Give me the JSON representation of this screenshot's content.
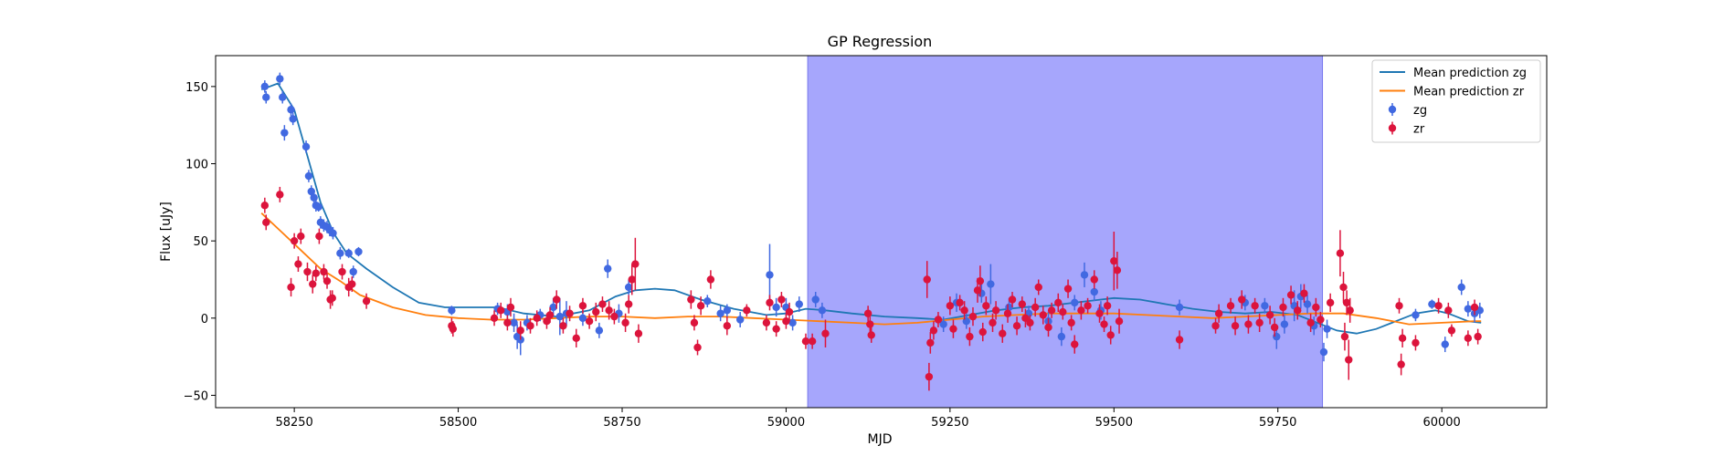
{
  "chart_data": {
    "type": "scatter",
    "title": "GP Regression",
    "xlabel": "MJD",
    "ylabel": "Flux [uJy]",
    "xlim": [
      58130,
      60160
    ],
    "ylim": [
      -58,
      170
    ],
    "xticks": [
      58250,
      58500,
      58750,
      59000,
      59250,
      59500,
      59750,
      60000
    ],
    "yticks": [
      -50,
      0,
      50,
      100,
      150
    ],
    "legend_position": "top-right",
    "shaded_region": {
      "x": [
        59033,
        59818
      ],
      "color": "#a6a6fc"
    },
    "colors": {
      "mean_zg": "#1f77b4",
      "mean_zr": "#ff7f0e",
      "zg": "#4169e1",
      "zr": "#dc143c"
    },
    "legend": [
      {
        "label": "Mean prediction zg",
        "kind": "line",
        "color": "#1f77b4"
      },
      {
        "label": "Mean prediction zr",
        "kind": "line",
        "color": "#ff7f0e"
      },
      {
        "label": "zg",
        "kind": "errorbar",
        "color": "#4169e1"
      },
      {
        "label": "zr",
        "kind": "errorbar",
        "color": "#dc143c"
      }
    ],
    "mean_prediction_zg": [
      [
        58200,
        148
      ],
      [
        58225,
        152
      ],
      [
        58250,
        135
      ],
      [
        58270,
        105
      ],
      [
        58290,
        75
      ],
      [
        58310,
        55
      ],
      [
        58330,
        42
      ],
      [
        58360,
        32
      ],
      [
        58400,
        20
      ],
      [
        58440,
        10
      ],
      [
        58480,
        7
      ],
      [
        58520,
        7
      ],
      [
        58560,
        7
      ],
      [
        58600,
        3
      ],
      [
        58650,
        1
      ],
      [
        58700,
        5
      ],
      [
        58740,
        14
      ],
      [
        58770,
        18
      ],
      [
        58800,
        19
      ],
      [
        58830,
        18
      ],
      [
        58870,
        12
      ],
      [
        58920,
        6
      ],
      [
        58970,
        2
      ],
      [
        59000,
        3
      ],
      [
        59030,
        6
      ],
      [
        59060,
        5
      ],
      [
        59100,
        3
      ],
      [
        59150,
        1
      ],
      [
        59200,
        0
      ],
      [
        59240,
        -1
      ],
      [
        59280,
        2
      ],
      [
        59320,
        5
      ],
      [
        59360,
        7
      ],
      [
        59400,
        8
      ],
      [
        59440,
        10
      ],
      [
        59480,
        12
      ],
      [
        59500,
        13
      ],
      [
        59540,
        12
      ],
      [
        59580,
        9
      ],
      [
        59620,
        6
      ],
      [
        59660,
        4
      ],
      [
        59700,
        3
      ],
      [
        59740,
        4
      ],
      [
        59780,
        2
      ],
      [
        59810,
        -3
      ],
      [
        59840,
        -8
      ],
      [
        59870,
        -10
      ],
      [
        59900,
        -7
      ],
      [
        59930,
        -2
      ],
      [
        59960,
        3
      ],
      [
        59990,
        5
      ],
      [
        60010,
        3
      ],
      [
        60040,
        -2
      ],
      [
        60060,
        -3
      ]
    ],
    "mean_prediction_zr": [
      [
        58200,
        68
      ],
      [
        58230,
        56
      ],
      [
        58260,
        44
      ],
      [
        58290,
        32
      ],
      [
        58320,
        24
      ],
      [
        58350,
        15
      ],
      [
        58400,
        7
      ],
      [
        58450,
        2
      ],
      [
        58500,
        0
      ],
      [
        58550,
        -1
      ],
      [
        58600,
        -1
      ],
      [
        58650,
        0
      ],
      [
        58700,
        1
      ],
      [
        58750,
        1
      ],
      [
        58800,
        0
      ],
      [
        58850,
        1
      ],
      [
        58900,
        1
      ],
      [
        58950,
        0
      ],
      [
        59000,
        -1
      ],
      [
        59050,
        -2
      ],
      [
        59100,
        -3
      ],
      [
        59150,
        -4
      ],
      [
        59200,
        -3
      ],
      [
        59250,
        -1
      ],
      [
        59300,
        1
      ],
      [
        59350,
        2
      ],
      [
        59400,
        3
      ],
      [
        59450,
        3
      ],
      [
        59500,
        3
      ],
      [
        59550,
        2
      ],
      [
        59600,
        1
      ],
      [
        59650,
        0
      ],
      [
        59700,
        1
      ],
      [
        59750,
        2
      ],
      [
        59800,
        3
      ],
      [
        59850,
        3
      ],
      [
        59900,
        0
      ],
      [
        59950,
        -4
      ],
      [
        60000,
        -3
      ],
      [
        60050,
        -2
      ],
      [
        60060,
        -2
      ]
    ],
    "zg": [
      [
        58205,
        150,
        4
      ],
      [
        58207,
        143,
        4
      ],
      [
        58228,
        155,
        4
      ],
      [
        58232,
        143,
        4
      ],
      [
        58235,
        120,
        5
      ],
      [
        58245,
        135,
        4
      ],
      [
        58248,
        129,
        4
      ],
      [
        58268,
        111,
        4
      ],
      [
        58272,
        92,
        4
      ],
      [
        58276,
        82,
        4
      ],
      [
        58280,
        78,
        4
      ],
      [
        58283,
        73,
        4
      ],
      [
        58287,
        72,
        3
      ],
      [
        58290,
        62,
        4
      ],
      [
        58295,
        60,
        4
      ],
      [
        58300,
        59,
        4
      ],
      [
        58304,
        57,
        4
      ],
      [
        58309,
        55,
        4
      ],
      [
        58320,
        42,
        4
      ],
      [
        58333,
        42,
        3
      ],
      [
        58340,
        30,
        4
      ],
      [
        58348,
        43,
        3
      ],
      [
        58490,
        5,
        3
      ],
      [
        58560,
        6,
        4
      ],
      [
        58575,
        4,
        5
      ],
      [
        58585,
        -3,
        6
      ],
      [
        58590,
        -12,
        8
      ],
      [
        58595,
        -14,
        10
      ],
      [
        58605,
        -3,
        5
      ],
      [
        58625,
        2,
        4
      ],
      [
        58645,
        7,
        6
      ],
      [
        58655,
        1,
        12
      ],
      [
        58665,
        3,
        8
      ],
      [
        58690,
        0,
        5
      ],
      [
        58715,
        -8,
        5
      ],
      [
        58728,
        32,
        6
      ],
      [
        58745,
        3,
        6
      ],
      [
        58760,
        20,
        5
      ],
      [
        58880,
        11,
        4
      ],
      [
        58900,
        3,
        5
      ],
      [
        58910,
        5,
        4
      ],
      [
        58930,
        -1,
        5
      ],
      [
        58975,
        28,
        20
      ],
      [
        58985,
        7,
        6
      ],
      [
        59000,
        7,
        6
      ],
      [
        59010,
        -3,
        5
      ],
      [
        59020,
        9,
        5
      ],
      [
        59045,
        12,
        5
      ],
      [
        59055,
        5,
        5
      ],
      [
        59240,
        -4,
        5
      ],
      [
        59260,
        10,
        6
      ],
      [
        59275,
        -2,
        5
      ],
      [
        59298,
        16,
        6
      ],
      [
        59312,
        22,
        13
      ],
      [
        59340,
        7,
        6
      ],
      [
        59370,
        3,
        5
      ],
      [
        59400,
        -2,
        6
      ],
      [
        59420,
        -12,
        6
      ],
      [
        59440,
        10,
        5
      ],
      [
        59455,
        28,
        8
      ],
      [
        59470,
        17,
        6
      ],
      [
        59480,
        5,
        6
      ],
      [
        59600,
        7,
        5
      ],
      [
        59700,
        10,
        5
      ],
      [
        59730,
        8,
        5
      ],
      [
        59748,
        -12,
        8
      ],
      [
        59760,
        -4,
        6
      ],
      [
        59775,
        8,
        10
      ],
      [
        59785,
        14,
        8
      ],
      [
        59795,
        9,
        6
      ],
      [
        59805,
        -5,
        6
      ],
      [
        59820,
        -22,
        6
      ],
      [
        59825,
        -7,
        6
      ],
      [
        59960,
        2,
        4
      ],
      [
        59985,
        9,
        3
      ],
      [
        60005,
        -17,
        5
      ],
      [
        60030,
        20,
        5
      ],
      [
        60040,
        6,
        5
      ],
      [
        60050,
        3,
        6
      ],
      [
        60058,
        5,
        5
      ]
    ],
    "zr": [
      [
        58205,
        73,
        5
      ],
      [
        58207,
        62,
        5
      ],
      [
        58228,
        80,
        5
      ],
      [
        58245,
        20,
        6
      ],
      [
        58250,
        50,
        5
      ],
      [
        58256,
        35,
        5
      ],
      [
        58260,
        53,
        5
      ],
      [
        58270,
        30,
        6
      ],
      [
        58278,
        22,
        6
      ],
      [
        58283,
        29,
        5
      ],
      [
        58288,
        53,
        5
      ],
      [
        58295,
        30,
        5
      ],
      [
        58300,
        24,
        5
      ],
      [
        58305,
        12,
        6
      ],
      [
        58308,
        13,
        5
      ],
      [
        58323,
        30,
        5
      ],
      [
        58333,
        20,
        6
      ],
      [
        58338,
        22,
        5
      ],
      [
        58360,
        11,
        5
      ],
      [
        58490,
        -5,
        5
      ],
      [
        58492,
        -7,
        5
      ],
      [
        58555,
        0,
        5
      ],
      [
        58565,
        5,
        5
      ],
      [
        58575,
        -3,
        5
      ],
      [
        58580,
        7,
        6
      ],
      [
        58595,
        -8,
        6
      ],
      [
        58610,
        -5,
        5
      ],
      [
        58620,
        0,
        5
      ],
      [
        58635,
        -2,
        5
      ],
      [
        58640,
        2,
        5
      ],
      [
        58650,
        12,
        6
      ],
      [
        58660,
        -5,
        5
      ],
      [
        58670,
        3,
        5
      ],
      [
        58680,
        -13,
        6
      ],
      [
        58690,
        8,
        5
      ],
      [
        58700,
        -2,
        5
      ],
      [
        58710,
        4,
        6
      ],
      [
        58720,
        9,
        5
      ],
      [
        58730,
        5,
        6
      ],
      [
        58738,
        1,
        5
      ],
      [
        58755,
        -3,
        6
      ],
      [
        58760,
        9,
        6
      ],
      [
        58765,
        25,
        10
      ],
      [
        58770,
        35,
        17
      ],
      [
        58775,
        -10,
        6
      ],
      [
        58855,
        12,
        6
      ],
      [
        58860,
        -3,
        5
      ],
      [
        58865,
        -19,
        5
      ],
      [
        58870,
        8,
        6
      ],
      [
        58885,
        25,
        6
      ],
      [
        58910,
        -5,
        6
      ],
      [
        58940,
        5,
        4
      ],
      [
        58970,
        -3,
        5
      ],
      [
        58975,
        10,
        5
      ],
      [
        58985,
        -7,
        5
      ],
      [
        58993,
        12,
        5
      ],
      [
        59000,
        -2,
        5
      ],
      [
        59005,
        4,
        6
      ],
      [
        59030,
        -15,
        5
      ],
      [
        59040,
        -15,
        5
      ],
      [
        59060,
        -10,
        9
      ],
      [
        59125,
        3,
        5
      ],
      [
        59128,
        -4,
        5
      ],
      [
        59130,
        -11,
        5
      ],
      [
        59215,
        25,
        12
      ],
      [
        59218,
        -38,
        9
      ],
      [
        59220,
        -16,
        7
      ],
      [
        59225,
        -8,
        6
      ],
      [
        59232,
        -1,
        5
      ],
      [
        59250,
        8,
        6
      ],
      [
        59255,
        -7,
        6
      ],
      [
        59265,
        10,
        5
      ],
      [
        59272,
        5,
        6
      ],
      [
        59280,
        -12,
        6
      ],
      [
        59285,
        1,
        6
      ],
      [
        59292,
        18,
        8
      ],
      [
        59296,
        24,
        10
      ],
      [
        59300,
        -9,
        6
      ],
      [
        59305,
        8,
        6
      ],
      [
        59315,
        -3,
        6
      ],
      [
        59320,
        5,
        6
      ],
      [
        59330,
        -10,
        6
      ],
      [
        59338,
        3,
        6
      ],
      [
        59345,
        12,
        5
      ],
      [
        59352,
        -5,
        6
      ],
      [
        59360,
        9,
        5
      ],
      [
        59365,
        0,
        6
      ],
      [
        59372,
        -3,
        5
      ],
      [
        59380,
        7,
        6
      ],
      [
        59385,
        20,
        5
      ],
      [
        59392,
        2,
        6
      ],
      [
        59400,
        -6,
        6
      ],
      [
        59405,
        5,
        5
      ],
      [
        59415,
        10,
        6
      ],
      [
        59422,
        4,
        5
      ],
      [
        59430,
        19,
        6
      ],
      [
        59435,
        -3,
        5
      ],
      [
        59440,
        -17,
        6
      ],
      [
        59450,
        5,
        6
      ],
      [
        59460,
        8,
        5
      ],
      [
        59470,
        25,
        6
      ],
      [
        59478,
        3,
        6
      ],
      [
        59485,
        -4,
        5
      ],
      [
        59490,
        8,
        6
      ],
      [
        59495,
        -11,
        6
      ],
      [
        59500,
        37,
        19
      ],
      [
        59505,
        31,
        12
      ],
      [
        59508,
        -2,
        8
      ],
      [
        59600,
        -14,
        6
      ],
      [
        59655,
        -5,
        5
      ],
      [
        59660,
        3,
        6
      ],
      [
        59678,
        8,
        5
      ],
      [
        59685,
        -5,
        6
      ],
      [
        59695,
        12,
        6
      ],
      [
        59705,
        -4,
        6
      ],
      [
        59715,
        8,
        5
      ],
      [
        59722,
        -3,
        6
      ],
      [
        59738,
        2,
        6
      ],
      [
        59745,
        -6,
        6
      ],
      [
        59758,
        7,
        6
      ],
      [
        59770,
        15,
        6
      ],
      [
        59780,
        5,
        6
      ],
      [
        59790,
        16,
        6
      ],
      [
        59800,
        -3,
        6
      ],
      [
        59808,
        7,
        6
      ],
      [
        59815,
        -1,
        5
      ],
      [
        59830,
        10,
        6
      ],
      [
        59845,
        42,
        15
      ],
      [
        59850,
        20,
        10
      ],
      [
        59852,
        -12,
        9
      ],
      [
        59855,
        10,
        8
      ],
      [
        59858,
        -27,
        13
      ],
      [
        59860,
        5,
        8
      ],
      [
        59935,
        8,
        5
      ],
      [
        59938,
        -30,
        7
      ],
      [
        59940,
        -13,
        6
      ],
      [
        59960,
        -16,
        5
      ],
      [
        59995,
        8,
        5
      ],
      [
        60010,
        5,
        5
      ],
      [
        60015,
        -8,
        4
      ],
      [
        60040,
        -13,
        5
      ],
      [
        60050,
        7,
        5
      ],
      [
        60055,
        -12,
        5
      ]
    ]
  }
}
